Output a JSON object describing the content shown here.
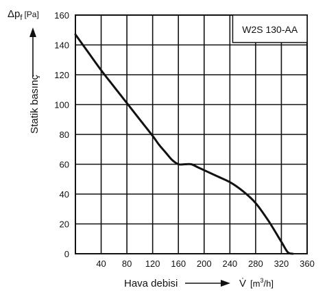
{
  "chart_data": {
    "type": "line",
    "title": "W2S 130-AA",
    "ylabel_symbol": "Δp",
    "ylabel_subscript": "f",
    "ylabel_unit": "[Pa]",
    "ylabel_name": "Statik basınç",
    "xlabel_name": "Hava debisi",
    "xlabel_symbol": "V̇",
    "xlabel_unit_prefix": "[m",
    "xlabel_unit_sup": "3",
    "xlabel_unit_suffix": "/h]",
    "xlim": [
      0,
      360
    ],
    "ylim": [
      0,
      160
    ],
    "x_ticks": [
      0,
      40,
      80,
      120,
      160,
      200,
      240,
      280,
      320,
      360
    ],
    "x_tick_labels": [
      "",
      "40",
      "80",
      "120",
      "160",
      "200",
      "240",
      "280",
      "320",
      "360"
    ],
    "y_ticks": [
      0,
      20,
      40,
      60,
      80,
      100,
      120,
      140,
      160
    ],
    "y_tick_labels": [
      "0",
      "20",
      "40",
      "60",
      "80",
      "100",
      "120",
      "140",
      "160"
    ],
    "grid": true,
    "series": [
      {
        "x": [
          0,
          20,
          40,
          60,
          80,
          100,
          120,
          130,
          140,
          150,
          160,
          170,
          180,
          190,
          200,
          220,
          240,
          260,
          280,
          300,
          320,
          330,
          338
        ],
        "y": [
          147,
          135,
          123,
          112,
          101,
          90,
          79,
          73,
          68,
          63,
          60,
          60,
          60,
          58,
          56,
          52,
          48,
          42,
          34,
          22,
          8,
          1,
          0
        ]
      }
    ]
  }
}
